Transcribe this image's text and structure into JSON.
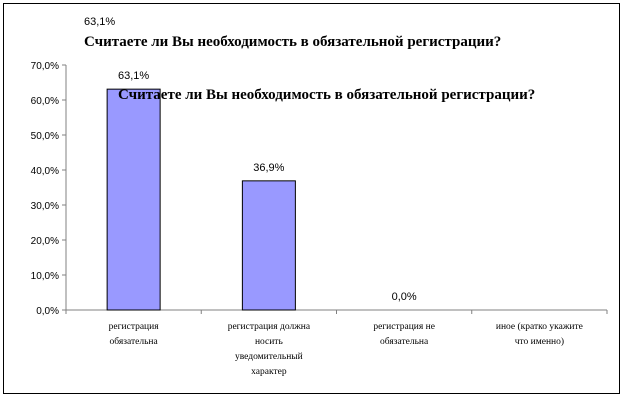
{
  "chart_data": {
    "type": "bar",
    "title": "Считаете ли Вы необходимость в обязательной регистрации?",
    "title_value_label": "63,1%",
    "categories": [
      "регистрация обязательна",
      "регистрация должна носить уведомительный характер",
      "регистрация не обязательна",
      "иное (кратко укажите что именно)"
    ],
    "category_lines": [
      [
        "регистрация",
        "обязательна"
      ],
      [
        "регистрация должна",
        "носить",
        "уведомительный",
        "характер"
      ],
      [
        "регистрация не",
        "обязательна"
      ],
      [
        "иное (кратко укажите",
        "что именно)"
      ]
    ],
    "values": [
      63.1,
      36.9,
      0.0,
      null
    ],
    "data_labels": [
      "63,1%",
      "36,9%",
      "0,0%",
      ""
    ],
    "yticks": [
      "0,0%",
      "10,0%",
      "20,0%",
      "30,0%",
      "40,0%",
      "50,0%",
      "60,0%",
      "70,0%"
    ],
    "ylim": [
      0,
      70
    ],
    "grid": false,
    "colors": {
      "bar_fill": "#9999ff",
      "bar_stroke": "#000000",
      "axis": "#808080"
    }
  }
}
